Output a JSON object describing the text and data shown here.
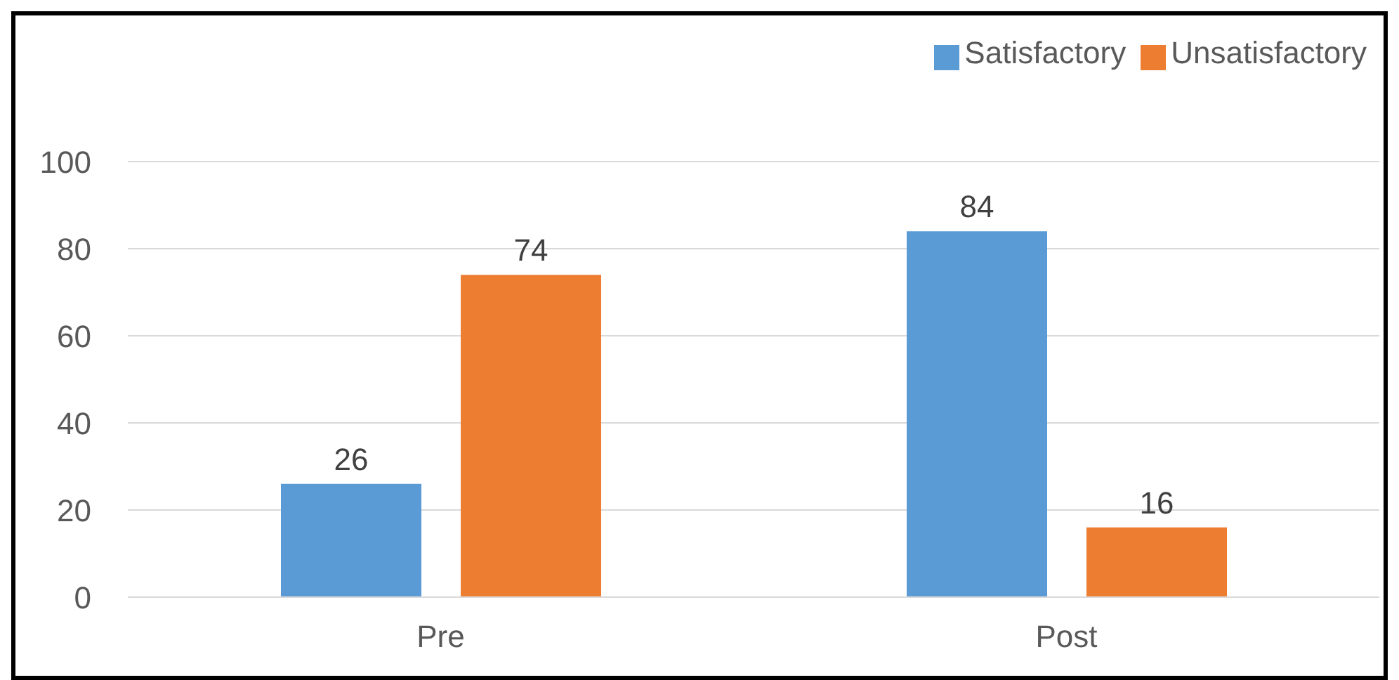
{
  "chart_data": {
    "type": "bar",
    "categories": [
      "Pre",
      "Post"
    ],
    "series": [
      {
        "name": "Satisfactory",
        "color": "#5b9bd5",
        "values": [
          26,
          84
        ]
      },
      {
        "name": "Unsatisfactory",
        "color": "#ed7d31",
        "values": [
          74,
          16
        ]
      }
    ],
    "ylim": [
      0,
      100
    ],
    "yticks": [
      0,
      20,
      40,
      60,
      80,
      100
    ],
    "grid": "y",
    "legend": "top right",
    "data_labels": true
  }
}
